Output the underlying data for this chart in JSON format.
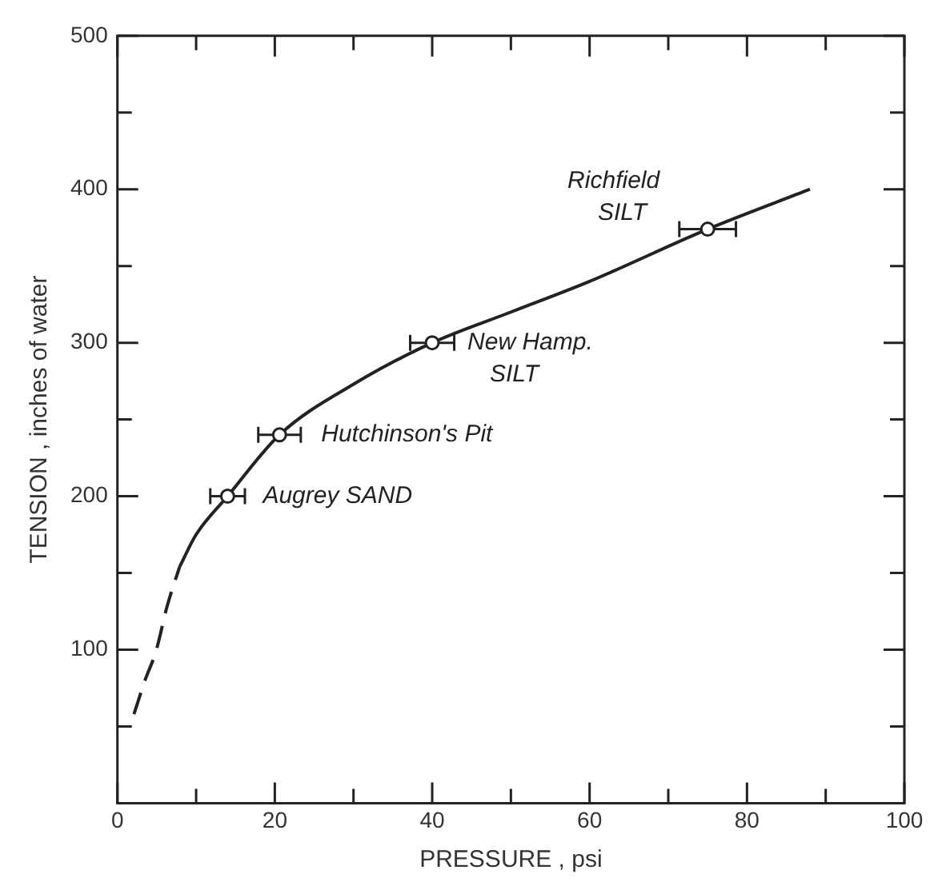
{
  "chart_data": {
    "type": "scatter",
    "xlabel": "PRESSURE , psi",
    "ylabel": "TENSION , inches of water",
    "xlim": [
      0,
      100
    ],
    "ylim": [
      0,
      500
    ],
    "xticks": [
      0,
      {
        "value": 10,
        "label": null
      },
      20,
      {
        "value": 30,
        "label": null
      },
      40,
      {
        "value": 50,
        "label": null
      },
      60,
      {
        "value": 70,
        "label": null
      },
      80,
      {
        "value": 90,
        "label": null
      },
      100
    ],
    "yticks": [
      {
        "value": 0,
        "label": null
      },
      {
        "value": 50,
        "label": null
      },
      100,
      {
        "value": 150,
        "label": null
      },
      200,
      {
        "value": 250,
        "label": null
      },
      300,
      {
        "value": 350,
        "label": null
      },
      400,
      {
        "value": 450,
        "label": null
      },
      500
    ],
    "grid": false,
    "legend": false,
    "series": [
      {
        "type": "line",
        "line_style": "dashed",
        "marker": "none",
        "color": "#222222",
        "x": [
          2.1,
          3.5,
          4.9,
          6.3,
          7.9
        ],
        "values": [
          58,
          80,
          99,
          128,
          154
        ]
      },
      {
        "type": "line",
        "line_style": "solid",
        "marker": "none",
        "color": "#222222",
        "x": [
          7.9,
          10,
          14,
          20.6,
          30,
          40,
          50,
          60,
          75,
          88
        ],
        "values": [
          154,
          175,
          200,
          240,
          273,
          300,
          320,
          340,
          374,
          400
        ]
      },
      {
        "type": "scatter",
        "marker": "circle",
        "color": "#222222",
        "x": [
          14,
          20.6,
          40,
          75
        ],
        "values": [
          200,
          240,
          300,
          374
        ],
        "xerrors": [
          2.2,
          2.7,
          2.8,
          3.6
        ]
      }
    ],
    "annotations": [
      {
        "text": "Augrey SAND",
        "x": 14,
        "y": 200
      },
      {
        "text": "Hutchinson's Pit",
        "x": 20.6,
        "y": 240
      },
      {
        "text": "New Hamp.\nSILT",
        "x": 40,
        "y": 300
      },
      {
        "text": "Richfield\nSILT",
        "x": 75,
        "y": 374
      }
    ]
  }
}
